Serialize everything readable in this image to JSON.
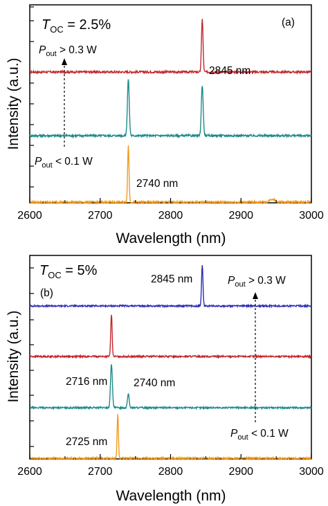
{
  "chart_data": [
    {
      "type": "line",
      "panel_label": "(a)",
      "toc_symbol": "T",
      "toc_sub": "OC",
      "toc_value": " = 2.5%",
      "xlabel": "Wavelength (nm)",
      "ylabel": "Intensity (a.u.)",
      "xlim": [
        2600,
        3000
      ],
      "xticks": [
        "2600",
        "2700",
        "2800",
        "2900",
        "3000"
      ],
      "yticks_per_axis": 5,
      "grid": false,
      "series": [
        {
          "color": "#c0282c",
          "peaks": [
            {
              "x": 2845,
              "h": 0.92,
              "w": 1.1
            }
          ]
        },
        {
          "color": "#1f8a8a",
          "peaks": [
            {
              "x": 2740,
              "h": 0.95,
              "w": 1.3
            },
            {
              "x": 2845,
              "h": 0.85,
              "w": 1.3
            }
          ]
        },
        {
          "color": "#f39a1d",
          "peaks": [
            {
              "x": 2740,
              "h": 0.95,
              "w": 1.0
            },
            {
              "x": 2945,
              "h": 0.05,
              "w": 4.0
            }
          ]
        }
      ],
      "annotations": {
        "peak_top": "2845 nm",
        "peak_bottom": "2740 nm",
        "pout_high": {
          "symbol": "P",
          "sub": "out",
          "text": " > 0.3 W"
        },
        "pout_low": {
          "symbol": "P",
          "sub": "out",
          "text": " < 0.1 W"
        }
      }
    },
    {
      "type": "line",
      "panel_label": "(b)",
      "toc_symbol": "T",
      "toc_sub": "OC",
      "toc_value": " = 5%",
      "xlabel": "Wavelength (nm)",
      "ylabel": "Intensity (a.u.)",
      "xlim": [
        2600,
        3000
      ],
      "xticks": [
        "2600",
        "2700",
        "2800",
        "2900",
        "3000"
      ],
      "yticks_per_axis": 5,
      "grid": false,
      "series": [
        {
          "color": "#2b2bb8",
          "peaks": [
            {
              "x": 2845,
              "h": 0.9,
              "w": 1.0
            }
          ]
        },
        {
          "color": "#c0282c",
          "peaks": [
            {
              "x": 2716,
              "h": 0.9,
              "w": 1.0
            }
          ]
        },
        {
          "color": "#1f8a8a",
          "peaks": [
            {
              "x": 2716,
              "h": 0.95,
              "w": 1.3
            },
            {
              "x": 2740,
              "h": 0.3,
              "w": 1.2
            }
          ]
        },
        {
          "color": "#f39a1d",
          "peaks": [
            {
              "x": 2725,
              "h": 0.95,
              "w": 0.9
            }
          ]
        }
      ],
      "annotations": {
        "peak_top": "2845 nm",
        "peak_mid_left": "2716 nm",
        "peak_mid_right": "2740 nm",
        "peak_bottom": "2725 nm",
        "pout_high": {
          "symbol": "P",
          "sub": "out",
          "text": " > 0.3 W"
        },
        "pout_low": {
          "symbol": "P",
          "sub": "out",
          "text": " < 0.1 W"
        }
      }
    }
  ]
}
